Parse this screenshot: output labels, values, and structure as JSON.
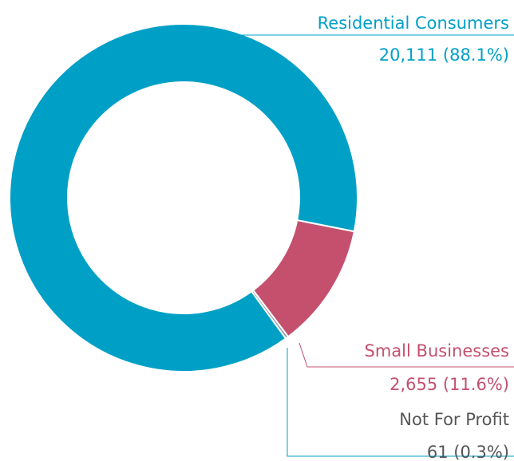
{
  "chart_data": {
    "type": "donut",
    "categories": [
      "Residential Consumers",
      "Small Businesses",
      "Not For Profit"
    ],
    "values": [
      20111,
      2655,
      61
    ],
    "value_labels": [
      "20,111 (88.1%)",
      "2,655 (11.6%)",
      "61 (0.3%)"
    ],
    "colors": [
      "#00a0c6",
      "#c4506e",
      "#8a9aa6"
    ],
    "label_colors": [
      "#00a0c6",
      "#c4506e",
      "#555555"
    ]
  }
}
